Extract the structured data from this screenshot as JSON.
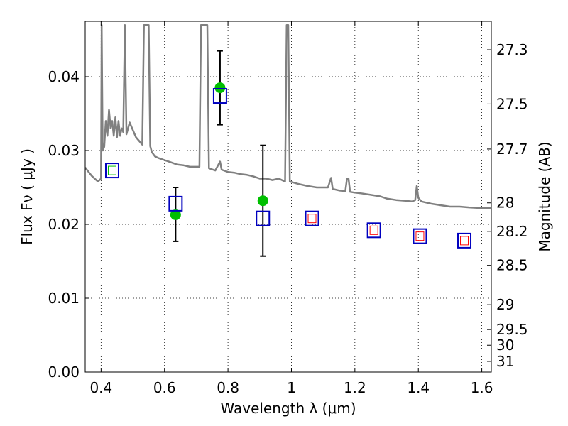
{
  "chart_data": {
    "type": "scatter",
    "title": "",
    "xlabel": "Wavelength  λ (μm)",
    "ylabel": "Flux  Fν  ( μJy )",
    "y2label": "Magnitude (AB)",
    "xlim": [
      0.35,
      1.63
    ],
    "ylim": [
      0.0,
      0.0475
    ],
    "grid": true,
    "x_ticks": [
      {
        "value": 0.4,
        "label": "0.4"
      },
      {
        "value": 0.6,
        "label": "0.6"
      },
      {
        "value": 0.8,
        "label": "0.8"
      },
      {
        "value": 1.0,
        "label": "1"
      },
      {
        "value": 1.2,
        "label": "1.2"
      },
      {
        "value": 1.4,
        "label": "1.4"
      },
      {
        "value": 1.6,
        "label": "1.6"
      }
    ],
    "y_ticks": [
      {
        "value": 0.0,
        "label": "0.00"
      },
      {
        "value": 0.01,
        "label": "0.01"
      },
      {
        "value": 0.02,
        "label": "0.02"
      },
      {
        "value": 0.03,
        "label": "0.03"
      },
      {
        "value": 0.04,
        "label": "0.04"
      }
    ],
    "y2_ticks": [
      {
        "value": 27.3,
        "label": "27.3"
      },
      {
        "value": 27.5,
        "label": "27.5"
      },
      {
        "value": 27.7,
        "label": "27.7"
      },
      {
        "value": 28.0,
        "label": "28"
      },
      {
        "value": 28.2,
        "label": "28.2"
      },
      {
        "value": 28.5,
        "label": "28.5"
      },
      {
        "value": 29.0,
        "label": "29"
      },
      {
        "value": 29.5,
        "label": "29.5"
      },
      {
        "value": 30.0,
        "label": "30"
      },
      {
        "value": 31.0,
        "label": "31"
      }
    ],
    "colors": {
      "spectrum": "#808080",
      "observed": "#00bf00",
      "model_box": "#0000bf",
      "inner_red": "#ff0000",
      "inner_green": "#00bf00",
      "errorbar": "#000000"
    },
    "observed": [
      {
        "x": 0.635,
        "y": 0.0213,
        "yerr_low": 0.0036,
        "yerr_high": 0.0037
      },
      {
        "x": 0.775,
        "y": 0.0385,
        "yerr_low": 0.005,
        "yerr_high": 0.005
      },
      {
        "x": 0.91,
        "y": 0.0232,
        "yerr_low": 0.0075,
        "yerr_high": 0.0075
      }
    ],
    "model_photometry": [
      {
        "x": 0.435,
        "y": 0.0273,
        "inner": "green"
      },
      {
        "x": 0.635,
        "y": 0.0228,
        "inner": "none"
      },
      {
        "x": 0.775,
        "y": 0.0374,
        "inner": "none"
      },
      {
        "x": 0.91,
        "y": 0.0208,
        "inner": "none"
      },
      {
        "x": 1.065,
        "y": 0.0208,
        "inner": "red"
      },
      {
        "x": 1.26,
        "y": 0.0192,
        "inner": "red"
      },
      {
        "x": 1.405,
        "y": 0.0184,
        "inner": "red"
      },
      {
        "x": 1.545,
        "y": 0.0178,
        "inner": "red"
      }
    ],
    "spectrum": [
      [
        0.35,
        0.0277
      ],
      [
        0.37,
        0.0266
      ],
      [
        0.39,
        0.0258
      ],
      [
        0.4,
        0.0262
      ],
      [
        0.402,
        0.047
      ],
      [
        0.405,
        0.03
      ],
      [
        0.41,
        0.0305
      ],
      [
        0.415,
        0.034
      ],
      [
        0.42,
        0.032
      ],
      [
        0.425,
        0.0355
      ],
      [
        0.43,
        0.033
      ],
      [
        0.435,
        0.034
      ],
      [
        0.44,
        0.032
      ],
      [
        0.445,
        0.0345
      ],
      [
        0.45,
        0.0318
      ],
      [
        0.455,
        0.034
      ],
      [
        0.46,
        0.032
      ],
      [
        0.465,
        0.033
      ],
      [
        0.47,
        0.0325
      ],
      [
        0.475,
        0.047
      ],
      [
        0.48,
        0.0322
      ],
      [
        0.49,
        0.0338
      ],
      [
        0.5,
        0.0328
      ],
      [
        0.51,
        0.0318
      ],
      [
        0.52,
        0.0313
      ],
      [
        0.53,
        0.0308
      ],
      [
        0.535,
        0.047
      ],
      [
        0.54,
        0.047
      ],
      [
        0.545,
        0.047
      ],
      [
        0.55,
        0.047
      ],
      [
        0.555,
        0.0306
      ],
      [
        0.56,
        0.0298
      ],
      [
        0.57,
        0.0292
      ],
      [
        0.58,
        0.029
      ],
      [
        0.6,
        0.0287
      ],
      [
        0.62,
        0.0284
      ],
      [
        0.64,
        0.0281
      ],
      [
        0.66,
        0.028
      ],
      [
        0.68,
        0.0278
      ],
      [
        0.7,
        0.0278
      ],
      [
        0.71,
        0.0278
      ],
      [
        0.715,
        0.047
      ],
      [
        0.72,
        0.047
      ],
      [
        0.725,
        0.047
      ],
      [
        0.73,
        0.047
      ],
      [
        0.735,
        0.047
      ],
      [
        0.74,
        0.0276
      ],
      [
        0.76,
        0.0273
      ],
      [
        0.775,
        0.0285
      ],
      [
        0.78,
        0.0274
      ],
      [
        0.8,
        0.0271
      ],
      [
        0.82,
        0.027
      ],
      [
        0.84,
        0.0268
      ],
      [
        0.86,
        0.0267
      ],
      [
        0.88,
        0.0265
      ],
      [
        0.9,
        0.0262
      ],
      [
        0.92,
        0.0262
      ],
      [
        0.94,
        0.026
      ],
      [
        0.96,
        0.0262
      ],
      [
        0.97,
        0.026
      ],
      [
        0.98,
        0.0258
      ],
      [
        0.985,
        0.047
      ],
      [
        0.99,
        0.047
      ],
      [
        0.995,
        0.0258
      ],
      [
        1.02,
        0.0255
      ],
      [
        1.05,
        0.0252
      ],
      [
        1.08,
        0.025
      ],
      [
        1.1,
        0.025
      ],
      [
        1.115,
        0.025
      ],
      [
        1.125,
        0.0263
      ],
      [
        1.13,
        0.0248
      ],
      [
        1.15,
        0.0246
      ],
      [
        1.17,
        0.0245
      ],
      [
        1.175,
        0.0262
      ],
      [
        1.18,
        0.0262
      ],
      [
        1.185,
        0.0244
      ],
      [
        1.2,
        0.0243
      ],
      [
        1.22,
        0.0242
      ],
      [
        1.25,
        0.024
      ],
      [
        1.28,
        0.0238
      ],
      [
        1.3,
        0.0235
      ],
      [
        1.33,
        0.0233
      ],
      [
        1.36,
        0.0232
      ],
      [
        1.38,
        0.0231
      ],
      [
        1.39,
        0.0233
      ],
      [
        1.395,
        0.0252
      ],
      [
        1.4,
        0.0236
      ],
      [
        1.41,
        0.0231
      ],
      [
        1.44,
        0.0228
      ],
      [
        1.47,
        0.0226
      ],
      [
        1.5,
        0.0224
      ],
      [
        1.53,
        0.0224
      ],
      [
        1.56,
        0.0223
      ],
      [
        1.6,
        0.0222
      ],
      [
        1.63,
        0.0222
      ]
    ]
  }
}
